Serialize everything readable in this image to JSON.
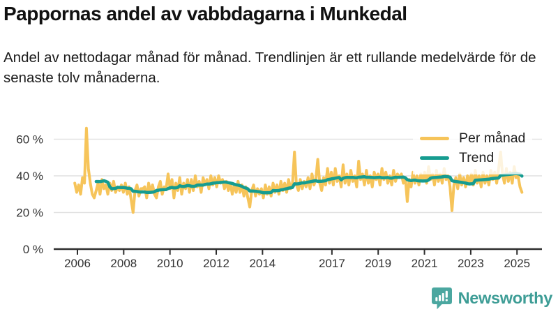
{
  "header": {
    "title": "Pappornas andel av vabbdagarna i Munkedal",
    "subtitle": "Andel av nettodagar månad för månad. Trendlinjen är ett rullande medelvärde för de senaste tolv månaderna."
  },
  "legend": {
    "items": [
      {
        "label": "Per månad",
        "color": "#F6C45A"
      },
      {
        "label": "Trend",
        "color": "#169C90"
      }
    ]
  },
  "brand": {
    "name": "Newsworthy",
    "color": "#3E9D96",
    "icon": "speech-bubble-bar-chart-icon",
    "icon_color": "#4BA7A0"
  },
  "chart_data": {
    "type": "line",
    "title": "Pappornas andel av vabbdagarna i Munkedal",
    "x_start": "2006-01",
    "x_end": "2025-03",
    "x_ticks": [
      2006,
      2008,
      2010,
      2012,
      2014,
      2017,
      2019,
      2021,
      2023,
      2025
    ],
    "y_ticks": [
      0,
      20,
      40,
      60
    ],
    "y_tick_suffix": " %",
    "ylim": [
      0,
      68
    ],
    "grid": "horizontal",
    "legend_position": "top-right",
    "series": [
      {
        "name": "Per månad",
        "color": "#F6C45A",
        "unit": "%",
        "monthly_values": [
          36,
          31,
          35,
          30,
          39,
          36,
          66,
          44,
          36,
          30,
          28,
          32,
          36,
          30,
          38,
          33,
          35,
          30,
          36,
          32,
          37,
          31,
          34,
          32,
          35,
          31,
          36,
          30,
          34,
          27,
          20,
          32,
          35,
          29,
          33,
          33,
          34,
          28,
          36,
          31,
          35,
          30,
          28,
          34,
          37,
          30,
          34,
          33,
          41,
          33,
          38,
          28,
          36,
          32,
          39,
          30,
          36,
          33,
          38,
          31,
          38,
          32,
          40,
          34,
          37,
          31,
          39,
          35,
          38,
          33,
          40,
          35,
          39,
          34,
          40,
          36,
          38,
          33,
          37,
          32,
          36,
          30,
          35,
          31,
          37,
          31,
          35,
          29,
          34,
          28,
          23,
          32,
          35,
          29,
          33,
          30,
          33,
          28,
          35,
          30,
          34,
          29,
          36,
          31,
          35,
          30,
          37,
          32,
          36,
          31,
          38,
          33,
          36,
          53,
          35,
          32,
          38,
          33,
          37,
          34,
          39,
          33,
          41,
          35,
          38,
          49,
          36,
          32,
          39,
          35,
          44,
          36,
          42,
          35,
          44,
          37,
          40,
          34,
          46,
          36,
          41,
          35,
          43,
          37,
          40,
          34,
          48,
          38,
          41,
          35,
          43,
          36,
          40,
          34,
          42,
          38,
          41,
          35,
          44,
          38,
          42,
          36,
          40,
          35,
          43,
          37,
          41,
          39,
          41,
          36,
          39,
          26,
          38,
          34,
          42,
          36,
          40,
          35,
          41,
          38,
          42,
          36,
          45,
          38,
          41,
          35,
          43,
          37,
          41,
          36,
          44,
          38,
          40,
          34,
          21,
          35,
          39,
          33,
          41,
          35,
          39,
          34,
          40,
          36,
          41,
          35,
          43,
          36,
          40,
          34,
          42,
          36,
          40,
          35,
          43,
          38,
          42,
          36,
          44,
          53,
          41,
          36,
          44,
          37,
          42,
          36,
          45,
          39,
          40,
          34,
          31
        ]
      },
      {
        "name": "Trend",
        "color": "#169C90",
        "unit": "%",
        "derived": "rolling_mean_of_last_12_months_of_per_manad"
      }
    ]
  }
}
